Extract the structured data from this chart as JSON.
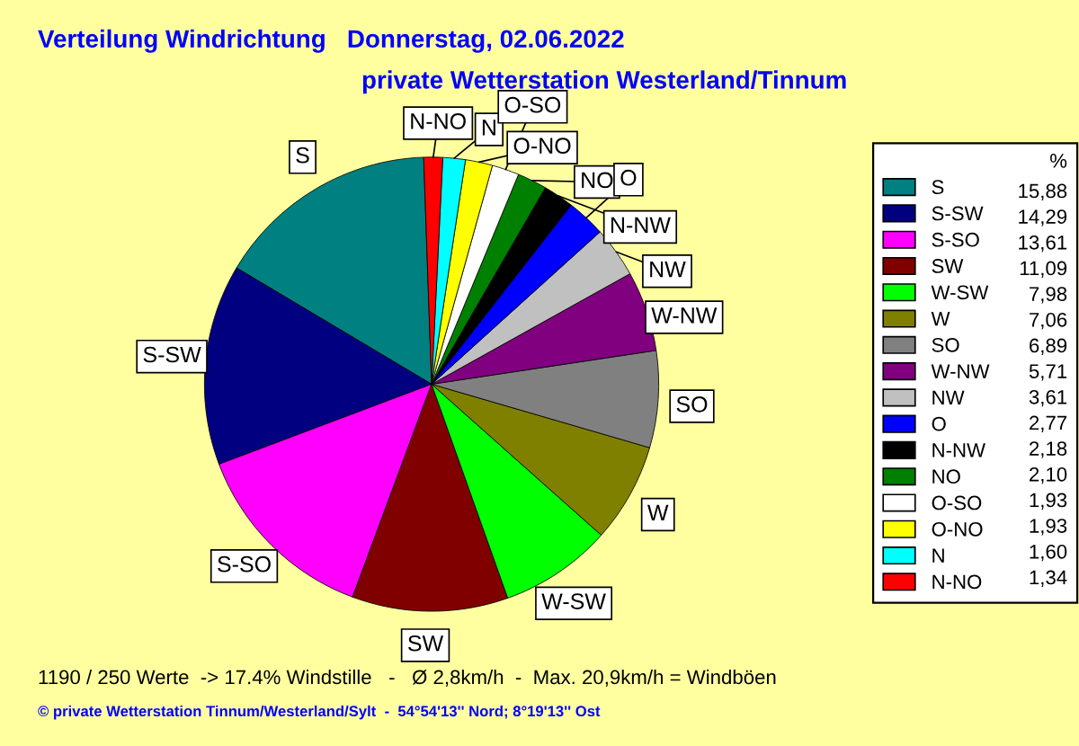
{
  "chart_data": {
    "type": "pie",
    "title": "Verteilung Windrichtung   Donnerstag, 02.06.2022",
    "subtitle": "private Wetterstation Westerland/Tinnum",
    "categories": [
      "S",
      "S-SW",
      "S-SO",
      "SW",
      "W-SW",
      "W",
      "SO",
      "W-NW",
      "NW",
      "O",
      "N-NW",
      "NO",
      "O-SO",
      "O-NO",
      "N",
      "N-NO"
    ],
    "values": [
      15.88,
      14.29,
      13.61,
      11.09,
      7.98,
      7.06,
      6.89,
      5.71,
      3.61,
      2.77,
      2.18,
      2.1,
      1.93,
      1.93,
      1.6,
      1.34
    ],
    "value_labels": [
      "15,88",
      "14,29",
      "13,61",
      "11,09",
      "7,98",
      "7,06",
      "6,89",
      "5,71",
      "3,61",
      "2,77",
      "2,18",
      "2,10",
      "1,93",
      "1,93",
      "1,60",
      "1,34"
    ],
    "colors": [
      "#008080",
      "#000080",
      "#ff00ff",
      "#800000",
      "#00ff00",
      "#808000",
      "#808080",
      "#800080",
      "#c0c0c0",
      "#0000ff",
      "#000000",
      "#008000",
      "#ffffff",
      "#ffff00",
      "#00ffff",
      "#ff0000"
    ],
    "legend_title": "%",
    "legend": "right",
    "annotations": [
      "1190 / 250 Werte  -> 17.4% Windstille   -   Ø 2,8km/h  -  Max. 20,9km/h = Windböen",
      "© private Wetterstation Tinnum/Westerland/Sylt  -  54°54'13'' Nord; 8°19'13'' Ost"
    ]
  }
}
